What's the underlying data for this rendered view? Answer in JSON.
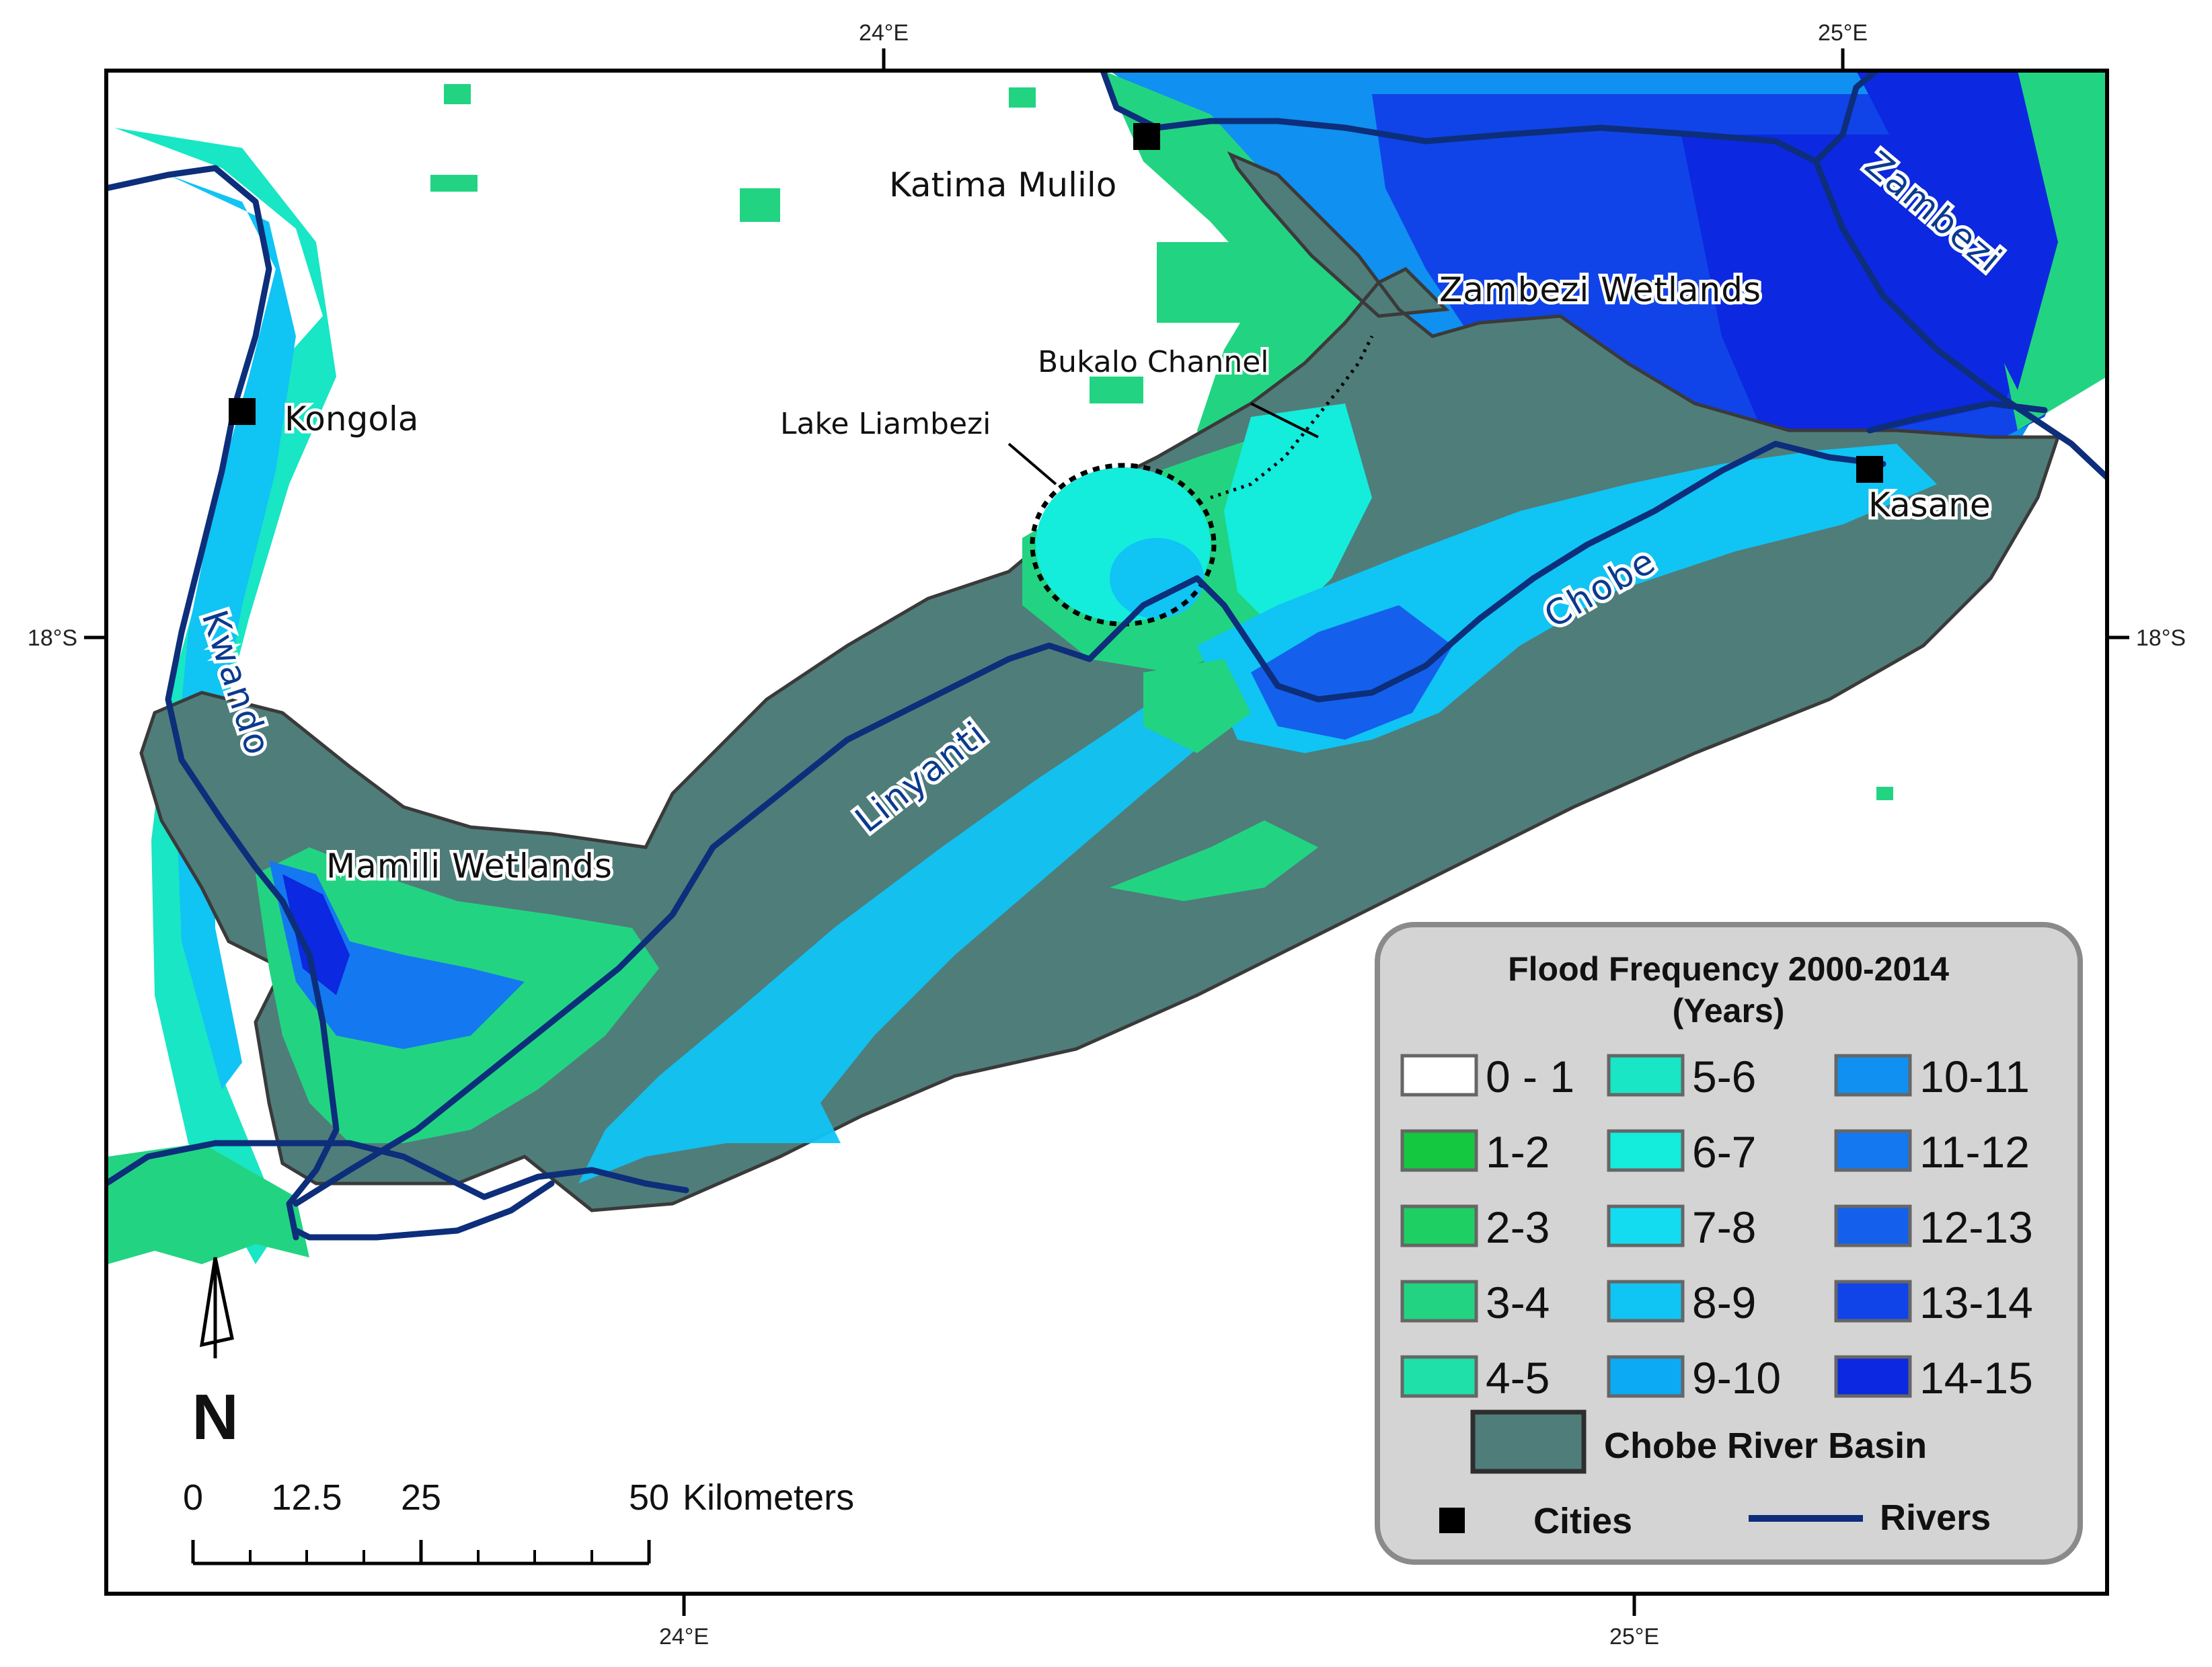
{
  "map": {
    "graticule": {
      "top": [
        "24°E",
        "25°E"
      ],
      "bottom": [
        "24°E",
        "25°E"
      ],
      "left": "18°S",
      "right": "18°S"
    },
    "cities": [
      {
        "name": "Katima Mulilo"
      },
      {
        "name": "Kongola"
      },
      {
        "name": "Kasane"
      }
    ],
    "wetlands": {
      "zambezi": "Zambezi Wetlands",
      "mamili": "Mamili Wetlands"
    },
    "rivers": {
      "zambezi": "Zambezi",
      "kwando": "Kwando",
      "linyanti": "Linyanti",
      "chobe": "Chobe"
    },
    "features": {
      "lake": "Lake Liambezi",
      "channel": "Bukalo Channel"
    },
    "colors": {
      "basin": "#4f7d7a",
      "basin_outline": "#3a3a3a",
      "river": "#0d2e7a",
      "frame": "#000000"
    }
  },
  "legend": {
    "title_line1": "Flood Frequency 2000-2014",
    "title_line2": "(Years)",
    "classes": [
      {
        "label": "0 - 1",
        "color": "#ffffff"
      },
      {
        "label": "1-2",
        "color": "#14c840"
      },
      {
        "label": "2-3",
        "color": "#1ecf64"
      },
      {
        "label": "3-4",
        "color": "#22d482"
      },
      {
        "label": "4-5",
        "color": "#1fe0a8"
      },
      {
        "label": "5-6",
        "color": "#18e6c4"
      },
      {
        "label": "6-7",
        "color": "#14ecdc"
      },
      {
        "label": "7-8",
        "color": "#14dcf0"
      },
      {
        "label": "8-9",
        "color": "#10c4f4"
      },
      {
        "label": "9-10",
        "color": "#0caaf4"
      },
      {
        "label": "10-11",
        "color": "#1090f0"
      },
      {
        "label": "11-12",
        "color": "#1478f0"
      },
      {
        "label": "12-13",
        "color": "#1460ec"
      },
      {
        "label": "13-14",
        "color": "#1044e8"
      },
      {
        "label": "14-15",
        "color": "#0c28e0"
      }
    ],
    "basin_label": "Chobe River Basin",
    "cities_label": "Cities",
    "rivers_label": "Rivers"
  },
  "scale_bar": {
    "ticks": [
      "0",
      "12.5",
      "25",
      "50"
    ],
    "unit": "Kilometers"
  },
  "north_arrow": {
    "letter": "N"
  }
}
